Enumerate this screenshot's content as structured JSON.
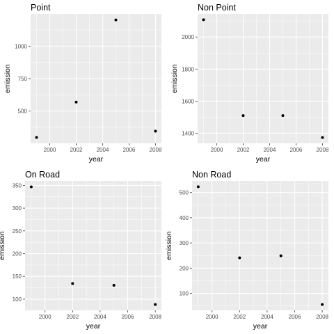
{
  "chart_data": [
    {
      "type": "scatter",
      "title": "Point",
      "xlabel": "year",
      "ylabel": "emission",
      "x": [
        1999,
        2002,
        2005,
        2008
      ],
      "y": [
        296.8,
        569.3,
        1202.5,
        345.0
      ],
      "xlim": [
        1998.55,
        2008.45
      ],
      "ylim": [
        251.5,
        1248.5
      ],
      "x_ticks": [
        2000,
        2002,
        2004,
        2006,
        2008
      ],
      "y_ticks": [
        500,
        750,
        1000
      ],
      "x_tick_labels": [
        "2000",
        "2002",
        "2004",
        "2006",
        "2008"
      ],
      "y_tick_labels": [
        "500",
        "750",
        "1000"
      ],
      "grid": true
    },
    {
      "type": "scatter",
      "title": "Non Point",
      "xlabel": "year",
      "ylabel": "emission",
      "x": [
        1999,
        2002,
        2005,
        2008
      ],
      "y": [
        2107.6,
        1510.0,
        1510.0,
        1373.2
      ],
      "xlim": [
        1998.55,
        2008.45
      ],
      "ylim": [
        1337,
        2144
      ],
      "x_ticks": [
        2000,
        2002,
        2004,
        2006,
        2008
      ],
      "y_ticks": [
        1400,
        1600,
        1800,
        2000
      ],
      "x_tick_labels": [
        "2000",
        "2002",
        "2004",
        "2006",
        "2008"
      ],
      "y_tick_labels": [
        "1400",
        "1600",
        "1800",
        "2000"
      ],
      "grid": true
    },
    {
      "type": "scatter",
      "title": "On Road",
      "xlabel": "year",
      "ylabel": "emission",
      "x": [
        1999,
        2002,
        2005,
        2008
      ],
      "y": [
        346.8,
        134.3,
        130.4,
        88.3
      ],
      "xlim": [
        1998.55,
        2008.45
      ],
      "ylim": [
        75.4,
        359.8
      ],
      "x_ticks": [
        2000,
        2002,
        2004,
        2006,
        2008
      ],
      "y_ticks": [
        100,
        150,
        200,
        250,
        300,
        350
      ],
      "x_tick_labels": [
        "2000",
        "2002",
        "2004",
        "2006",
        "2008"
      ],
      "y_tick_labels": [
        "100",
        "150",
        "200",
        "250",
        "300",
        "350"
      ],
      "grid": true
    },
    {
      "type": "scatter",
      "title": "Non Road",
      "xlabel": "year",
      "ylabel": "emission",
      "x": [
        1999,
        2002,
        2005,
        2008
      ],
      "y": [
        522.9,
        241.0,
        248.9,
        55.8
      ],
      "xlim": [
        1998.55,
        2008.45
      ],
      "ylim": [
        32.5,
        546.2
      ],
      "x_ticks": [
        2000,
        2002,
        2004,
        2006,
        2008
      ],
      "y_ticks": [
        100,
        200,
        300,
        400,
        500
      ],
      "x_tick_labels": [
        "2000",
        "2002",
        "2004",
        "2006",
        "2008"
      ],
      "y_tick_labels": [
        "100",
        "200",
        "300",
        "400",
        "500"
      ],
      "grid": true
    }
  ],
  "colors": {
    "panel_background": "#ebebeb",
    "grid_major": "#ffffff",
    "point": "#000000",
    "tick_text": "#4d4d4d",
    "tick_mark": "#333333"
  }
}
